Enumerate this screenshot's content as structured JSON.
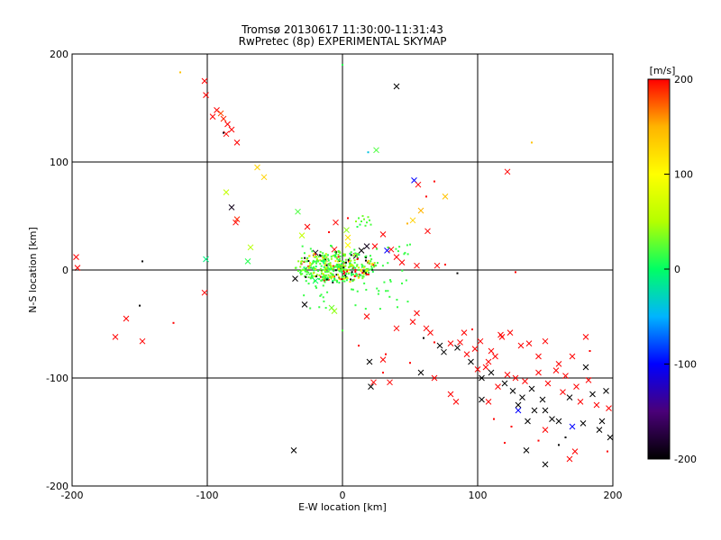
{
  "title": "Tromsø 20130617 11:30:00-11:31:43",
  "subtitle": "RwPretec (8p) EXPERIMENTAL SKYMAP",
  "chart_data": {
    "type": "scatter",
    "title": "Tromsø 20130617 11:30:00-11:31:43",
    "subtitle": "RwPretec (8p) EXPERIMENTAL SKYMAP",
    "xlabel": "E-W location [km]",
    "ylabel": "N-S location [km]",
    "xlim": [
      -200,
      200
    ],
    "ylim": [
      -200,
      200
    ],
    "xticks": [
      -200,
      -100,
      0,
      100,
      200
    ],
    "yticks": [
      -200,
      -100,
      0,
      100,
      200
    ],
    "grid": true,
    "colorbar": {
      "label": "[m/s]",
      "range": [
        -200,
        200
      ],
      "ticks": [
        200,
        100,
        0,
        -100,
        -200
      ],
      "colormap": [
        "#000000",
        "#4a0078",
        "#0000ff",
        "#00b4ff",
        "#00ff64",
        "#b4ff00",
        "#ffff00",
        "#ffb400",
        "#ff0000"
      ]
    },
    "points": [
      {
        "x": -102,
        "y": 175,
        "v": 200,
        "m": "x"
      },
      {
        "x": -101,
        "y": 162,
        "v": 200,
        "m": "x"
      },
      {
        "x": -93,
        "y": 148,
        "v": 200,
        "m": "x"
      },
      {
        "x": -90,
        "y": 145,
        "v": 180,
        "m": "x"
      },
      {
        "x": -88,
        "y": 140,
        "v": 190,
        "m": "x"
      },
      {
        "x": -85,
        "y": 135,
        "v": 200,
        "m": "x"
      },
      {
        "x": -86,
        "y": 126,
        "v": 200,
        "m": "x"
      },
      {
        "x": -82,
        "y": 130,
        "v": 200,
        "m": "x"
      },
      {
        "x": -78,
        "y": 118,
        "v": 200,
        "m": "x"
      },
      {
        "x": -96,
        "y": 142,
        "v": 200,
        "m": "x"
      },
      {
        "x": -120,
        "y": 183,
        "v": 140,
        "m": "."
      },
      {
        "x": -88,
        "y": 127,
        "v": -190,
        "m": "."
      },
      {
        "x": 0,
        "y": 190,
        "v": 10,
        "m": "."
      },
      {
        "x": 40,
        "y": 170,
        "v": -200,
        "m": "x"
      },
      {
        "x": -63,
        "y": 95,
        "v": 130,
        "m": "x"
      },
      {
        "x": -58,
        "y": 86,
        "v": 130,
        "m": "x"
      },
      {
        "x": -86,
        "y": 72,
        "v": 60,
        "m": "x"
      },
      {
        "x": -82,
        "y": 58,
        "v": -190,
        "m": "x"
      },
      {
        "x": -79,
        "y": 44,
        "v": 200,
        "m": "x"
      },
      {
        "x": -78,
        "y": 47,
        "v": 190,
        "m": "x"
      },
      {
        "x": -68,
        "y": 21,
        "v": 50,
        "m": "x"
      },
      {
        "x": -70,
        "y": 8,
        "v": 10,
        "m": "x"
      },
      {
        "x": -101,
        "y": 10,
        "v": -10,
        "m": "x"
      },
      {
        "x": -102,
        "y": -21,
        "v": 200,
        "m": "x"
      },
      {
        "x": -197,
        "y": 12,
        "v": 200,
        "m": "x"
      },
      {
        "x": -196,
        "y": 2,
        "v": 200,
        "m": "x"
      },
      {
        "x": -148,
        "y": 8,
        "v": -200,
        "m": "."
      },
      {
        "x": -160,
        "y": -45,
        "v": 200,
        "m": "x"
      },
      {
        "x": -150,
        "y": -33,
        "v": -200,
        "m": "."
      },
      {
        "x": -168,
        "y": -62,
        "v": 200,
        "m": "x"
      },
      {
        "x": -148,
        "y": -66,
        "v": 200,
        "m": "x"
      },
      {
        "x": -125,
        "y": -49,
        "v": 200,
        "m": "."
      },
      {
        "x": 19,
        "y": 109,
        "v": -40,
        "m": "."
      },
      {
        "x": 25,
        "y": 111,
        "v": 20,
        "m": "x"
      },
      {
        "x": 140,
        "y": 118,
        "v": 140,
        "m": "."
      },
      {
        "x": 122,
        "y": 91,
        "v": 200,
        "m": "x"
      },
      {
        "x": 53,
        "y": 83,
        "v": -100,
        "m": "x"
      },
      {
        "x": 56,
        "y": 79,
        "v": 200,
        "m": "x"
      },
      {
        "x": 68,
        "y": 82,
        "v": 200,
        "m": "."
      },
      {
        "x": 76,
        "y": 68,
        "v": 140,
        "m": "x"
      },
      {
        "x": 62,
        "y": 68,
        "v": 200,
        "m": "."
      },
      {
        "x": 58,
        "y": 55,
        "v": 150,
        "m": "x"
      },
      {
        "x": 52,
        "y": 46,
        "v": 130,
        "m": "x"
      },
      {
        "x": 63,
        "y": 36,
        "v": 200,
        "m": "x"
      },
      {
        "x": 48,
        "y": 43,
        "v": 150,
        "m": "."
      },
      {
        "x": 30,
        "y": 33,
        "v": 200,
        "m": "x"
      },
      {
        "x": 33,
        "y": 18,
        "v": -100,
        "m": "x"
      },
      {
        "x": 36,
        "y": 19,
        "v": 200,
        "m": "x"
      },
      {
        "x": 40,
        "y": 12,
        "v": 200,
        "m": "x"
      },
      {
        "x": 24,
        "y": 22,
        "v": 200,
        "m": "x"
      },
      {
        "x": 18,
        "y": 22,
        "v": -190,
        "m": "x"
      },
      {
        "x": 14,
        "y": 18,
        "v": -200,
        "m": "x"
      },
      {
        "x": 10,
        "y": 13,
        "v": -180,
        "m": "x"
      },
      {
        "x": 4,
        "y": 30,
        "v": 120,
        "m": "x"
      },
      {
        "x": 3,
        "y": 37,
        "v": 40,
        "m": "x"
      },
      {
        "x": 4,
        "y": 48,
        "v": 200,
        "m": "."
      },
      {
        "x": -5,
        "y": 44,
        "v": 200,
        "m": "x"
      },
      {
        "x": -33,
        "y": 54,
        "v": 20,
        "m": "x"
      },
      {
        "x": -26,
        "y": 40,
        "v": 200,
        "m": "x"
      },
      {
        "x": -30,
        "y": 32,
        "v": 60,
        "m": "x"
      },
      {
        "x": -10,
        "y": 35,
        "v": 200,
        "m": "."
      },
      {
        "x": 4,
        "y": 23,
        "v": 100,
        "m": "x"
      },
      {
        "x": -6,
        "y": 19,
        "v": 200,
        "m": "x"
      },
      {
        "x": -13,
        "y": 10,
        "v": 150,
        "m": "x"
      },
      {
        "x": -20,
        "y": 16,
        "v": -190,
        "m": "x"
      },
      {
        "x": 20,
        "y": 6,
        "v": 200,
        "m": "."
      },
      {
        "x": 55,
        "y": 4,
        "v": 200,
        "m": "x"
      },
      {
        "x": 70,
        "y": 4,
        "v": 200,
        "m": "x"
      },
      {
        "x": 44,
        "y": 7,
        "v": 200,
        "m": "x"
      },
      {
        "x": 76,
        "y": 5,
        "v": 200,
        "m": "."
      },
      {
        "x": 85,
        "y": -3,
        "v": -200,
        "m": "."
      },
      {
        "x": 128,
        "y": -2,
        "v": 200,
        "m": "."
      },
      {
        "x": -35,
        "y": -8,
        "v": -200,
        "m": "x"
      },
      {
        "x": -28,
        "y": -32,
        "v": -200,
        "m": "x"
      },
      {
        "x": -20,
        "y": -10,
        "v": 0,
        "m": "x"
      },
      {
        "x": -8,
        "y": -35,
        "v": 30,
        "m": "x"
      },
      {
        "x": -6,
        "y": -38,
        "v": 40,
        "m": "x"
      },
      {
        "x": 18,
        "y": -43,
        "v": 200,
        "m": "x"
      },
      {
        "x": 40,
        "y": -54,
        "v": 200,
        "m": "x"
      },
      {
        "x": 52,
        "y": -48,
        "v": 200,
        "m": "x"
      },
      {
        "x": 55,
        "y": -40,
        "v": 200,
        "m": "x"
      },
      {
        "x": 60,
        "y": -63,
        "v": -200,
        "m": "."
      },
      {
        "x": 62,
        "y": -54,
        "v": 200,
        "m": "x"
      },
      {
        "x": 65,
        "y": -58,
        "v": 200,
        "m": "x"
      },
      {
        "x": 68,
        "y": -67,
        "v": 200,
        "m": "."
      },
      {
        "x": 72,
        "y": -70,
        "v": -200,
        "m": "x"
      },
      {
        "x": 75,
        "y": -76,
        "v": -200,
        "m": "x"
      },
      {
        "x": 80,
        "y": -68,
        "v": 200,
        "m": "x"
      },
      {
        "x": 85,
        "y": -72,
        "v": -200,
        "m": "x"
      },
      {
        "x": 87,
        "y": -67,
        "v": 200,
        "m": "x"
      },
      {
        "x": 92,
        "y": -78,
        "v": 200,
        "m": "x"
      },
      {
        "x": 95,
        "y": -85,
        "v": -200,
        "m": "x"
      },
      {
        "x": 98,
        "y": -73,
        "v": 200,
        "m": "x"
      },
      {
        "x": 100,
        "y": -92,
        "v": 200,
        "m": "x"
      },
      {
        "x": 103,
        "y": -100,
        "v": -200,
        "m": "x"
      },
      {
        "x": 106,
        "y": -90,
        "v": 200,
        "m": "x"
      },
      {
        "x": 108,
        "y": -85,
        "v": 200,
        "m": "x"
      },
      {
        "x": 110,
        "y": -95,
        "v": -200,
        "m": "x"
      },
      {
        "x": 113,
        "y": -80,
        "v": 200,
        "m": "x"
      },
      {
        "x": 115,
        "y": -108,
        "v": 200,
        "m": "x"
      },
      {
        "x": 117,
        "y": -60,
        "v": 200,
        "m": "x"
      },
      {
        "x": 120,
        "y": -105,
        "v": -200,
        "m": "x"
      },
      {
        "x": 122,
        "y": -97,
        "v": 200,
        "m": "x"
      },
      {
        "x": 124,
        "y": -58,
        "v": 200,
        "m": "x"
      },
      {
        "x": 126,
        "y": -112,
        "v": -200,
        "m": "x"
      },
      {
        "x": 128,
        "y": -100,
        "v": 200,
        "m": "x"
      },
      {
        "x": 130,
        "y": -125,
        "v": -200,
        "m": "x"
      },
      {
        "x": 133,
        "y": -118,
        "v": -200,
        "m": "x"
      },
      {
        "x": 135,
        "y": -103,
        "v": 200,
        "m": "x"
      },
      {
        "x": 137,
        "y": -140,
        "v": -200,
        "m": "x"
      },
      {
        "x": 140,
        "y": -110,
        "v": -200,
        "m": "x"
      },
      {
        "x": 142,
        "y": -130,
        "v": -200,
        "m": "x"
      },
      {
        "x": 145,
        "y": -95,
        "v": 200,
        "m": "x"
      },
      {
        "x": 148,
        "y": -120,
        "v": -200,
        "m": "x"
      },
      {
        "x": 150,
        "y": -130,
        "v": -200,
        "m": "x"
      },
      {
        "x": 152,
        "y": -105,
        "v": 200,
        "m": "x"
      },
      {
        "x": 155,
        "y": -138,
        "v": -200,
        "m": "x"
      },
      {
        "x": 158,
        "y": -93,
        "v": 200,
        "m": "x"
      },
      {
        "x": 160,
        "y": -140,
        "v": -200,
        "m": "x"
      },
      {
        "x": 163,
        "y": -113,
        "v": 200,
        "m": "x"
      },
      {
        "x": 165,
        "y": -98,
        "v": 200,
        "m": "x"
      },
      {
        "x": 168,
        "y": -118,
        "v": -200,
        "m": "x"
      },
      {
        "x": 170,
        "y": -145,
        "v": -100,
        "m": "x"
      },
      {
        "x": 173,
        "y": -108,
        "v": 200,
        "m": "x"
      },
      {
        "x": 176,
        "y": -122,
        "v": 200,
        "m": "x"
      },
      {
        "x": 178,
        "y": -142,
        "v": -200,
        "m": "x"
      },
      {
        "x": 180,
        "y": -90,
        "v": -200,
        "m": "x"
      },
      {
        "x": 182,
        "y": -102,
        "v": 200,
        "m": "x"
      },
      {
        "x": 185,
        "y": -115,
        "v": -200,
        "m": "x"
      },
      {
        "x": 188,
        "y": -125,
        "v": 200,
        "m": "x"
      },
      {
        "x": 190,
        "y": -148,
        "v": -200,
        "m": "x"
      },
      {
        "x": 192,
        "y": -140,
        "v": -200,
        "m": "x"
      },
      {
        "x": 195,
        "y": -112,
        "v": -200,
        "m": "x"
      },
      {
        "x": 197,
        "y": -128,
        "v": 200,
        "m": "x"
      },
      {
        "x": 198,
        "y": -155,
        "v": -200,
        "m": "x"
      },
      {
        "x": 180,
        "y": -62,
        "v": 200,
        "m": "x"
      },
      {
        "x": 183,
        "y": -75,
        "v": 200,
        "m": "."
      },
      {
        "x": 150,
        "y": -66,
        "v": 200,
        "m": "x"
      },
      {
        "x": 145,
        "y": -80,
        "v": 200,
        "m": "x"
      },
      {
        "x": 138,
        "y": -68,
        "v": 200,
        "m": "x"
      },
      {
        "x": 132,
        "y": -70,
        "v": 200,
        "m": "x"
      },
      {
        "x": 118,
        "y": -62,
        "v": 200,
        "m": "x"
      },
      {
        "x": 110,
        "y": -75,
        "v": 200,
        "m": "x"
      },
      {
        "x": 102,
        "y": -66,
        "v": 200,
        "m": "x"
      },
      {
        "x": 90,
        "y": -58,
        "v": 200,
        "m": "x"
      },
      {
        "x": 96,
        "y": -55,
        "v": 200,
        "m": "."
      },
      {
        "x": 170,
        "y": -80,
        "v": 200,
        "m": "x"
      },
      {
        "x": 160,
        "y": -87,
        "v": 200,
        "m": "x"
      },
      {
        "x": 172,
        "y": -168,
        "v": 200,
        "m": "x"
      },
      {
        "x": 168,
        "y": -175,
        "v": 200,
        "m": "x"
      },
      {
        "x": 150,
        "y": -180,
        "v": -200,
        "m": "x"
      },
      {
        "x": 136,
        "y": -167,
        "v": -200,
        "m": "x"
      },
      {
        "x": 145,
        "y": -158,
        "v": 200,
        "m": "."
      },
      {
        "x": 160,
        "y": -162,
        "v": -200,
        "m": "."
      },
      {
        "x": 120,
        "y": -160,
        "v": 200,
        "m": "."
      },
      {
        "x": 103,
        "y": -120,
        "v": -200,
        "m": "x"
      },
      {
        "x": 108,
        "y": -122,
        "v": 200,
        "m": "x"
      },
      {
        "x": 84,
        "y": -122,
        "v": 200,
        "m": "x"
      },
      {
        "x": 80,
        "y": -115,
        "v": 200,
        "m": "x"
      },
      {
        "x": 68,
        "y": -100,
        "v": 200,
        "m": "x"
      },
      {
        "x": 58,
        "y": -95,
        "v": -200,
        "m": "x"
      },
      {
        "x": 50,
        "y": -86,
        "v": 200,
        "m": "."
      },
      {
        "x": 35,
        "y": -104,
        "v": 200,
        "m": "x"
      },
      {
        "x": 23,
        "y": -104,
        "v": 200,
        "m": "x"
      },
      {
        "x": 21,
        "y": -108,
        "v": -200,
        "m": "x"
      },
      {
        "x": 30,
        "y": -95,
        "v": 200,
        "m": "."
      },
      {
        "x": 30,
        "y": -83,
        "v": 200,
        "m": "x"
      },
      {
        "x": 20,
        "y": -85,
        "v": -200,
        "m": "x"
      },
      {
        "x": 32,
        "y": -78,
        "v": 200,
        "m": "."
      },
      {
        "x": 12,
        "y": -70,
        "v": 200,
        "m": "."
      },
      {
        "x": 0,
        "y": -56,
        "v": 20,
        "m": "."
      },
      {
        "x": -36,
        "y": -167,
        "v": -200,
        "m": "x"
      },
      {
        "x": 130,
        "y": -130,
        "v": -100,
        "m": "x"
      },
      {
        "x": 150,
        "y": -148,
        "v": 200,
        "m": "x"
      },
      {
        "x": 165,
        "y": -155,
        "v": -200,
        "m": "."
      },
      {
        "x": 196,
        "y": -168,
        "v": 200,
        "m": "."
      },
      {
        "x": 125,
        "y": -145,
        "v": 200,
        "m": "."
      },
      {
        "x": 112,
        "y": -138,
        "v": 200,
        "m": "."
      },
      {
        "x": 12,
        "y": 48,
        "v": 20,
        "m": "."
      },
      {
        "x": 14,
        "y": 45,
        "v": 20,
        "m": "."
      },
      {
        "x": 16,
        "y": 47,
        "v": 30,
        "m": "."
      },
      {
        "x": 18,
        "y": 44,
        "v": 20,
        "m": "."
      },
      {
        "x": 13,
        "y": 42,
        "v": 10,
        "m": "."
      },
      {
        "x": 17,
        "y": 41,
        "v": 20,
        "m": "."
      },
      {
        "x": 19,
        "y": 49,
        "v": 30,
        "m": "."
      },
      {
        "x": 10,
        "y": 45,
        "v": 40,
        "m": "."
      },
      {
        "x": 20,
        "y": 46,
        "v": 20,
        "m": "."
      },
      {
        "x": 15,
        "y": 50,
        "v": 30,
        "m": "."
      },
      {
        "x": 11,
        "y": 40,
        "v": 10,
        "m": "."
      },
      {
        "x": 21,
        "y": 42,
        "v": 20,
        "m": "."
      }
    ]
  }
}
